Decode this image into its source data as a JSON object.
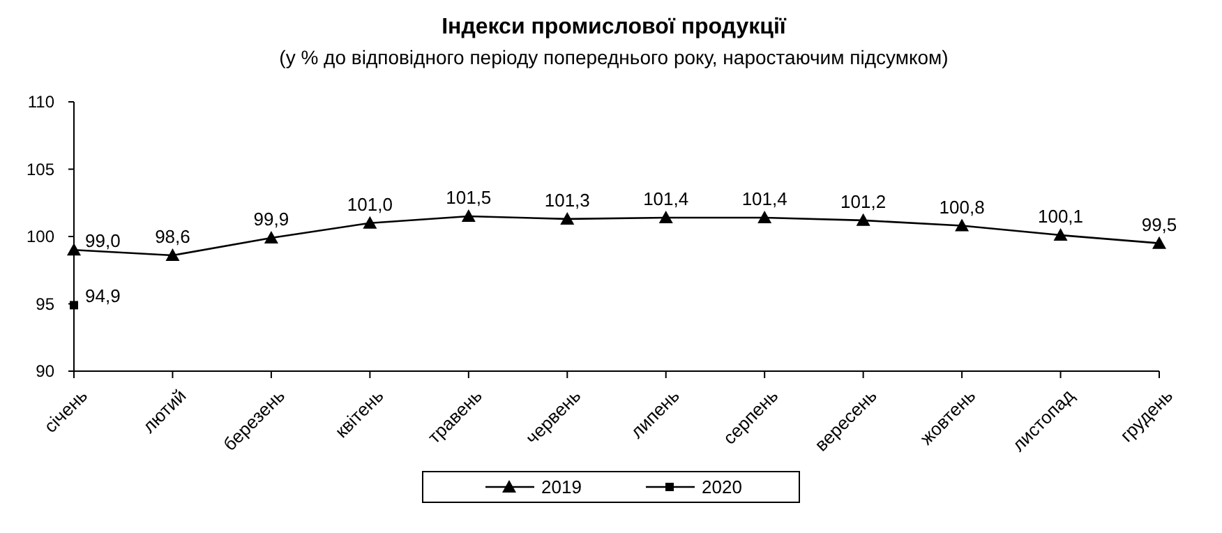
{
  "chart_data": {
    "type": "line",
    "title": "Індекси промислової продукції",
    "subtitle": "(у % до відповідного періоду попереднього року, наростаючим підсумком)",
    "categories": [
      "січень",
      "лютий",
      "березень",
      "квітень",
      "травень",
      "червень",
      "липень",
      "серпень",
      "вересень",
      "жовтень",
      "листопад",
      "грудень"
    ],
    "series": [
      {
        "name": "2019",
        "color": "#000000",
        "marker": "triangle",
        "values": [
          99.0,
          98.6,
          99.9,
          101.0,
          101.5,
          101.3,
          101.4,
          101.4,
          101.2,
          100.8,
          100.1,
          99.5
        ],
        "value_labels": [
          "99,0",
          "98,6",
          "99,9",
          "101,0",
          "101,5",
          "101,3",
          "101,4",
          "101,4",
          "101,2",
          "100,8",
          "100,1",
          "99,5"
        ]
      },
      {
        "name": "2020",
        "color": "#000000",
        "marker": "square",
        "values": [
          94.9,
          null,
          null,
          null,
          null,
          null,
          null,
          null,
          null,
          null,
          null,
          null
        ],
        "value_labels": [
          "94,9",
          null,
          null,
          null,
          null,
          null,
          null,
          null,
          null,
          null,
          null,
          null
        ]
      }
    ],
    "ylim": [
      90,
      110
    ],
    "yticks": [
      90,
      95,
      100,
      105,
      110
    ],
    "grid": false,
    "legend": "bottom",
    "line_style": "solid"
  }
}
